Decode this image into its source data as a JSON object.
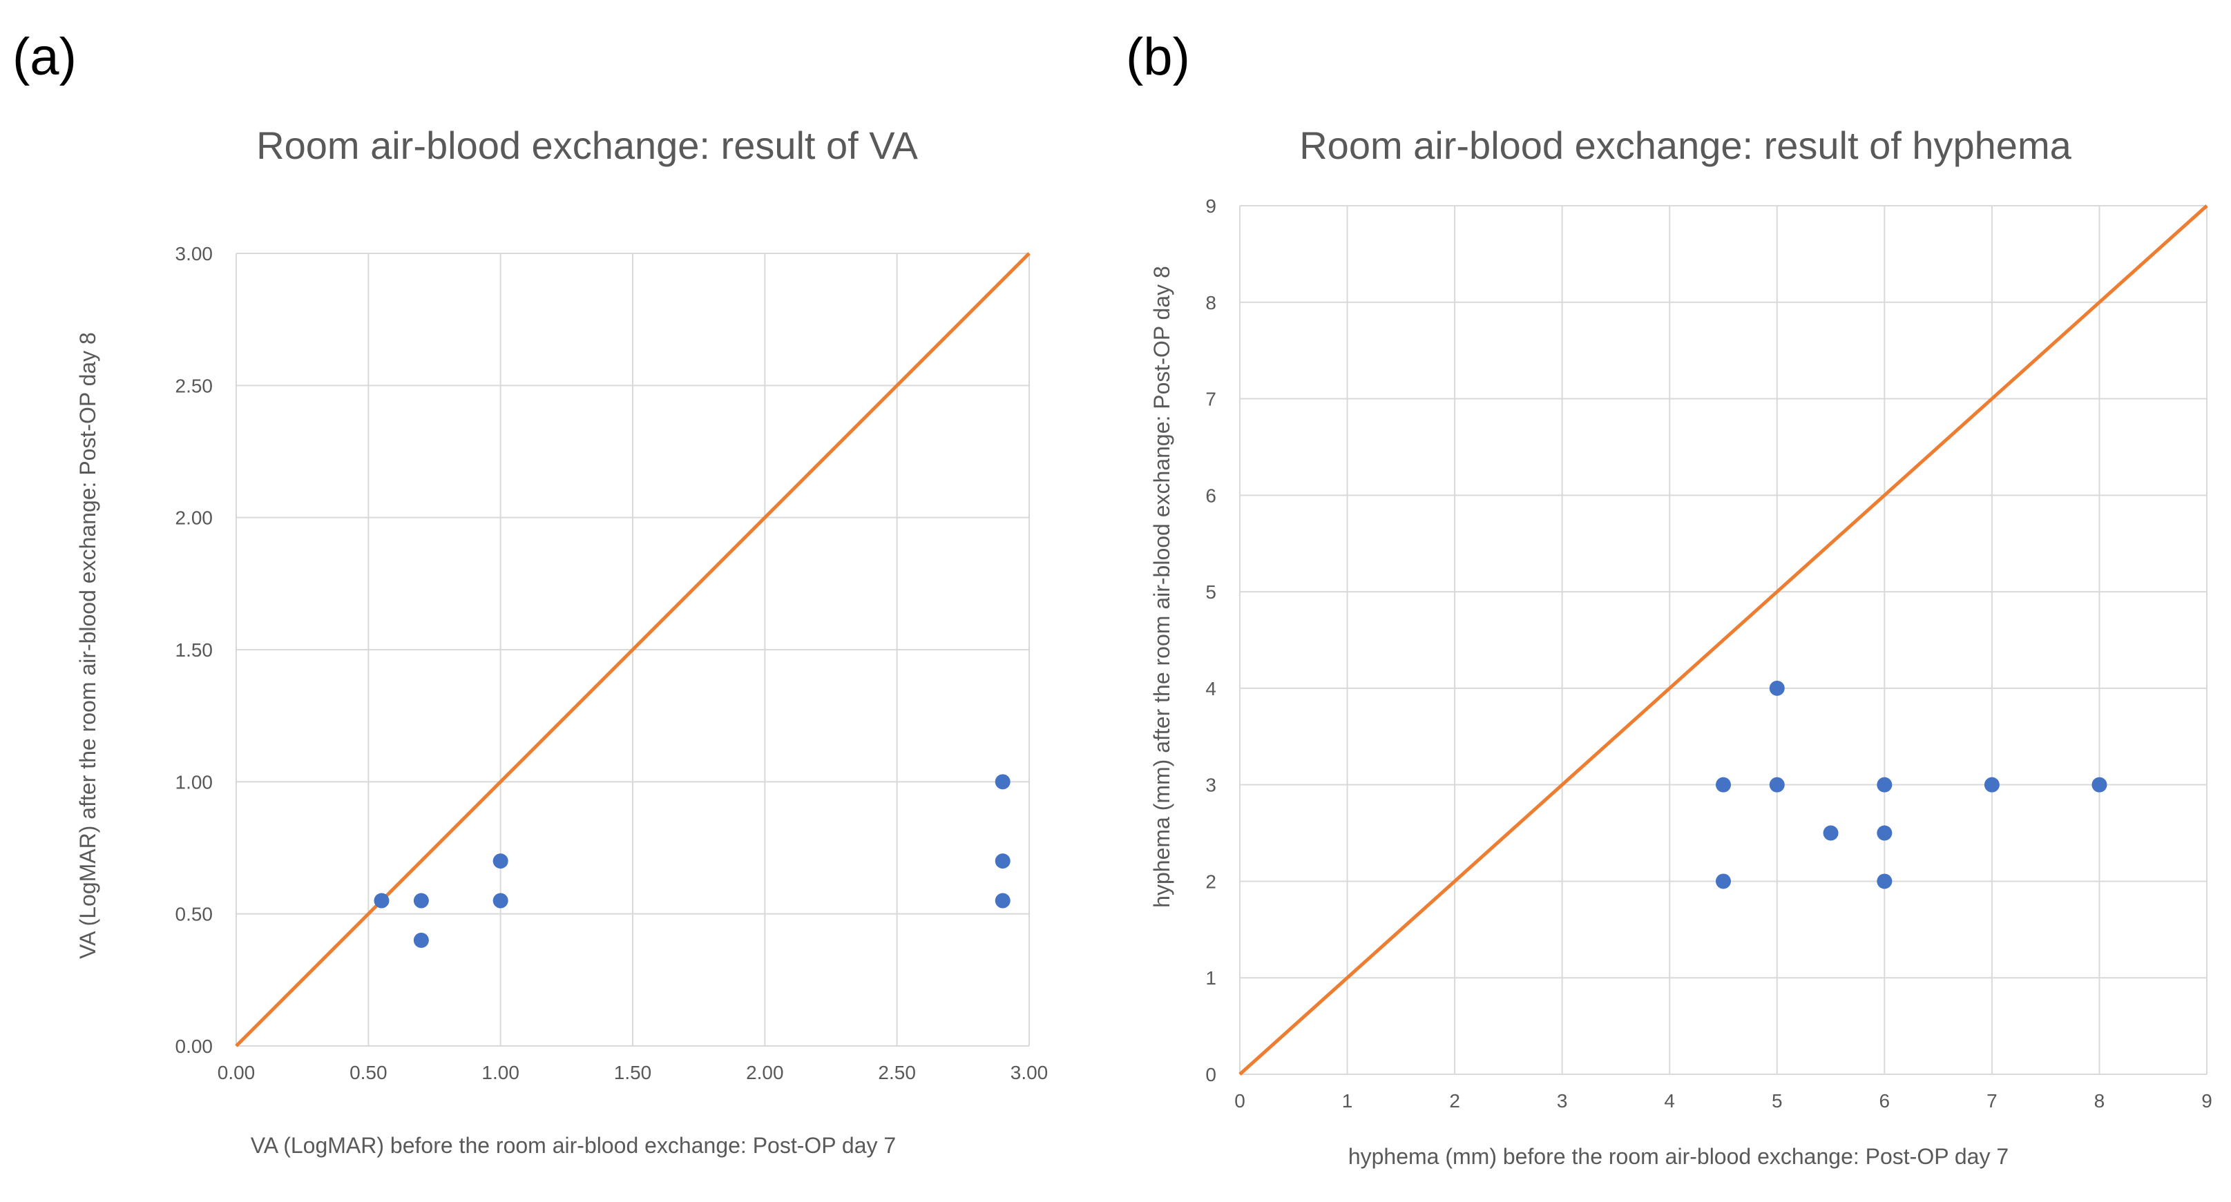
{
  "figure": {
    "panels": [
      "(a)",
      "(b)"
    ]
  },
  "colors": {
    "points": "#4472C4",
    "reference_line": "#ED7D31",
    "grid": "#D9D9D9",
    "text": "#595959"
  },
  "chart_data": [
    {
      "panel": "(a)",
      "type": "scatter",
      "title": "Room air-blood exchange: result of VA",
      "xlabel": "VA (LogMAR) before the room air-blood exchange: Post-OP day 7",
      "ylabel": "VA (LogMAR) after the room air-blood exchange: Post-OP day 8",
      "xlim": [
        0,
        3
      ],
      "ylim": [
        0,
        3
      ],
      "xticks": [
        0,
        0.5,
        1,
        1.5,
        2,
        2.5,
        3
      ],
      "yticks": [
        0,
        0.5,
        1,
        1.5,
        2,
        2.5,
        3
      ],
      "xtick_labels": [
        "0.00",
        "0.50",
        "1.00",
        "1.50",
        "2.00",
        "2.50",
        "3.00"
      ],
      "ytick_labels": [
        "0.00",
        "0.50",
        "1.00",
        "1.50",
        "2.00",
        "2.50",
        "3.00"
      ],
      "grid": true,
      "reference_line": {
        "from": [
          0,
          0
        ],
        "to": [
          3,
          3
        ]
      },
      "points": [
        {
          "x": 0.55,
          "y": 0.55
        },
        {
          "x": 0.7,
          "y": 0.55
        },
        {
          "x": 0.7,
          "y": 0.4
        },
        {
          "x": 1.0,
          "y": 0.7
        },
        {
          "x": 1.0,
          "y": 0.55
        },
        {
          "x": 2.9,
          "y": 1.0
        },
        {
          "x": 2.9,
          "y": 0.7
        },
        {
          "x": 2.9,
          "y": 0.55
        }
      ]
    },
    {
      "panel": "(b)",
      "type": "scatter",
      "title": "Room air-blood exchange: result of hyphema",
      "xlabel": "hyphema (mm) before the room air-blood exchange: Post-OP day 7",
      "ylabel": "hyphema (mm) after the room air-blood exchange: Post-OP day 8",
      "xlim": [
        0,
        9
      ],
      "ylim": [
        0,
        9
      ],
      "xticks": [
        0,
        1,
        2,
        3,
        4,
        5,
        6,
        7,
        8,
        9
      ],
      "yticks": [
        0,
        1,
        2,
        3,
        4,
        5,
        6,
        7,
        8,
        9
      ],
      "xtick_labels": [
        "0",
        "1",
        "2",
        "3",
        "4",
        "5",
        "6",
        "7",
        "8",
        "9"
      ],
      "ytick_labels": [
        "0",
        "1",
        "2",
        "3",
        "4",
        "5",
        "6",
        "7",
        "8",
        "9"
      ],
      "grid": true,
      "reference_line": {
        "from": [
          0,
          0
        ],
        "to": [
          9,
          9
        ]
      },
      "points": [
        {
          "x": 4.5,
          "y": 3
        },
        {
          "x": 4.5,
          "y": 2
        },
        {
          "x": 5,
          "y": 4
        },
        {
          "x": 5,
          "y": 3
        },
        {
          "x": 5.5,
          "y": 2.5
        },
        {
          "x": 6,
          "y": 3
        },
        {
          "x": 6,
          "y": 2.5
        },
        {
          "x": 6,
          "y": 2
        },
        {
          "x": 7,
          "y": 3
        },
        {
          "x": 8,
          "y": 3
        }
      ]
    }
  ]
}
